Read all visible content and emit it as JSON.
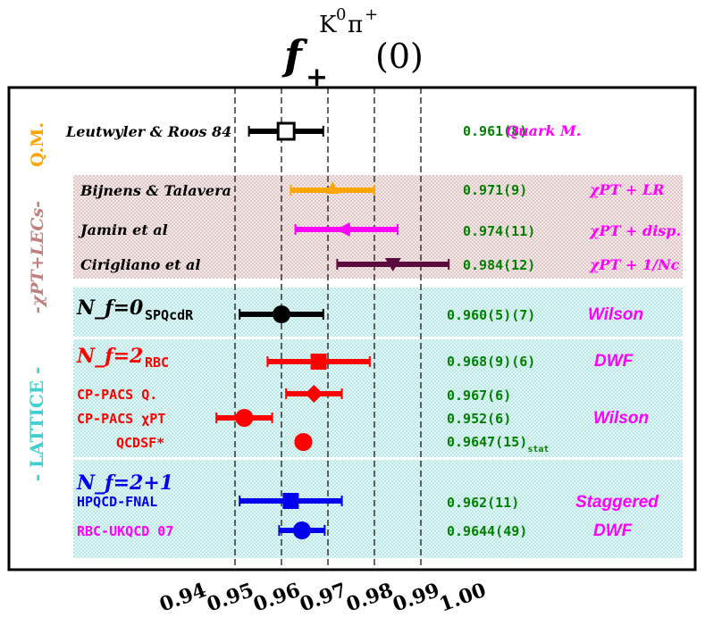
{
  "chart_data": {
    "type": "scatter",
    "title": "f+K0π+(0)",
    "title_parts": {
      "f": "f",
      "sub": "+",
      "sup": "K",
      "sup_zero": "0",
      "sup_pi": "π",
      "sup_plus": "+",
      "arg": "(0)"
    },
    "xlim": [
      0.93,
      1.02
    ],
    "x_ticks": [
      "0.94",
      "0.95",
      "0.96",
      "0.97",
      "0.98",
      "0.99",
      "1.00"
    ],
    "dashed_lines": [
      0.95,
      0.96,
      0.97,
      0.98,
      0.99
    ],
    "group_labels": {
      "qm": "Q.M.",
      "chpt": "-χPT+LECs-",
      "lattice": "- LATTICE -"
    },
    "sub_headers": {
      "nf0": "N_f=0",
      "nf2": "N_f=2",
      "nf21": "N_f=2+1"
    },
    "points": [
      {
        "label": "Leutwyler & Roos 84",
        "value": 0.961,
        "lo": 0.953,
        "hi": 0.969,
        "marker": "open-square",
        "color": "#000000",
        "result": "0.961(8)",
        "method": "Quark M."
      },
      {
        "label": "Bijnens & Talavera",
        "value": 0.971,
        "lo": 0.962,
        "hi": 0.98,
        "marker": "arrow-up",
        "color": "#ffa500",
        "result": "0.971(9)",
        "method": "χPT + LR"
      },
      {
        "label": "Jamin et al",
        "value": 0.974,
        "lo": 0.963,
        "hi": 0.985,
        "marker": "arrow-left",
        "color": "#ff00ff",
        "result": "0.974(11)",
        "method": "χPT + disp."
      },
      {
        "label": "Cirigliano et al",
        "value": 0.984,
        "lo": 0.972,
        "hi": 0.996,
        "marker": "triangle-down",
        "color": "#5a0a3c",
        "result": "0.984(12)",
        "method": "χPT + 1/Nc"
      },
      {
        "label": "SPQcdR",
        "value": 0.96,
        "lo": 0.951,
        "hi": 0.969,
        "marker": "circle",
        "color": "#000000",
        "result": "0.960(5)(7)",
        "method": "Wilson"
      },
      {
        "label": "RBC",
        "value": 0.968,
        "lo": 0.957,
        "hi": 0.979,
        "marker": "square",
        "color": "#ff0000",
        "result": "0.968(9)(6)",
        "method": "DWF"
      },
      {
        "label": "CP-PACS Q.",
        "value": 0.967,
        "lo": 0.961,
        "hi": 0.973,
        "marker": "diamond",
        "color": "#ff0000",
        "result": "0.967(6)",
        "method": ""
      },
      {
        "label": "CP-PACS χPT",
        "value": 0.952,
        "lo": 0.946,
        "hi": 0.958,
        "marker": "circle",
        "color": "#ff0000",
        "result": "0.952(6)",
        "method": "Wilson"
      },
      {
        "label": "QCDSF*",
        "value": 0.9647,
        "lo": 0.9632,
        "hi": 0.9662,
        "marker": "circle",
        "color": "#ff0000",
        "result": "0.9647(15)",
        "result_sub": "stat",
        "method": ""
      },
      {
        "label": "HPQCD-FNAL",
        "value": 0.962,
        "lo": 0.951,
        "hi": 0.973,
        "marker": "square",
        "color": "#0000ee",
        "result": "0.962(11)",
        "method": "Staggered"
      },
      {
        "label": "RBC-UKQCD 07",
        "value": 0.9644,
        "lo": 0.9595,
        "hi": 0.9693,
        "marker": "circle",
        "color": "#0000ee",
        "result": "0.9644(49)",
        "method": "DWF"
      }
    ],
    "colors": {
      "result_text": "#008000",
      "method_text": "#ff00ff",
      "chpt_band": "#c99a9a",
      "lattice_band": "#7fd4d0",
      "qm_label": "#ffa500",
      "chpt_label": "#c08080",
      "lattice_label": "#40d0d0",
      "lattice_red": "#ff0000",
      "rbcukqcd_label": "#ff00ff"
    }
  }
}
